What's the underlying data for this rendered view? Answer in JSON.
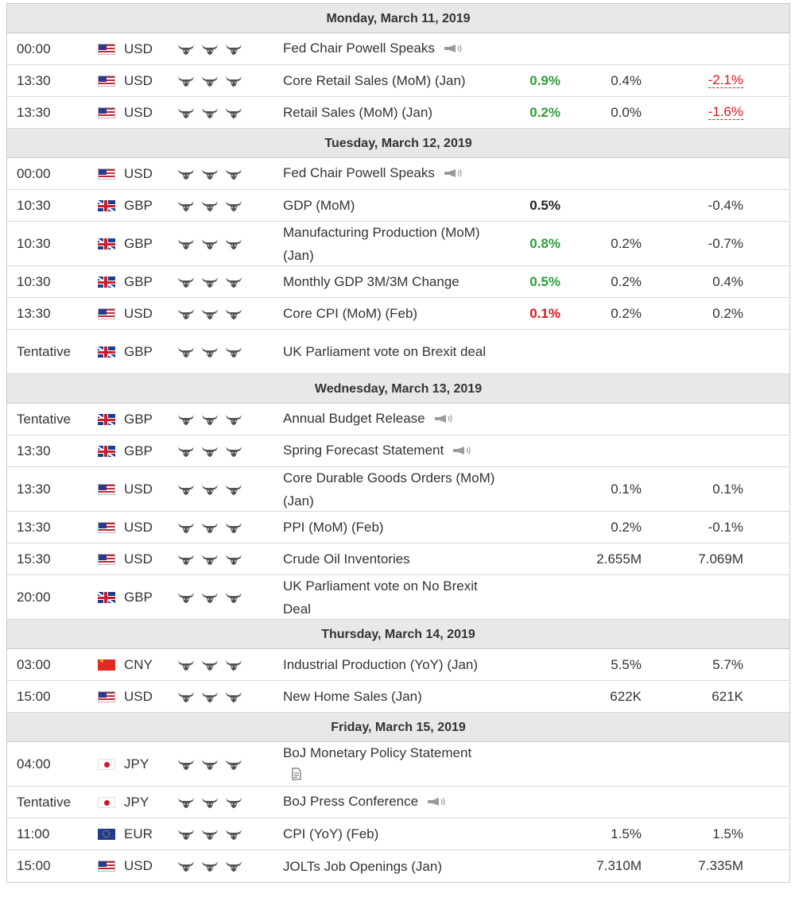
{
  "days": [
    {
      "header": "Monday, March 11, 2019",
      "events": [
        {
          "time": "00:00",
          "flag": "us",
          "currency": "USD",
          "event": "Fed Chair Powell Speaks",
          "icon": "speech-icon",
          "actual": "",
          "actual_tone": "",
          "forecast": "",
          "previous": "",
          "previous_tone": ""
        },
        {
          "time": "13:30",
          "flag": "us",
          "currency": "USD",
          "event": "Core Retail Sales (MoM) (Jan)",
          "icon": "",
          "actual": "0.9%",
          "actual_tone": "pos",
          "forecast": "0.4%",
          "previous": "-2.1%",
          "previous_tone": "revised"
        },
        {
          "time": "13:30",
          "flag": "us",
          "currency": "USD",
          "event": "Retail Sales (MoM) (Jan)",
          "icon": "",
          "actual": "0.2%",
          "actual_tone": "pos",
          "forecast": "0.0%",
          "previous": "-1.6%",
          "previous_tone": "revised"
        }
      ]
    },
    {
      "header": "Tuesday, March 12, 2019",
      "events": [
        {
          "time": "00:00",
          "flag": "us",
          "currency": "USD",
          "event": "Fed Chair Powell Speaks",
          "icon": "speech-icon",
          "actual": "",
          "actual_tone": "",
          "forecast": "",
          "previous": "",
          "previous_tone": ""
        },
        {
          "time": "10:30",
          "flag": "gb",
          "currency": "GBP",
          "event": "GDP (MoM)",
          "icon": "",
          "actual": "0.5%",
          "actual_tone": "neu",
          "forecast": "",
          "previous": "-0.4%",
          "previous_tone": ""
        },
        {
          "time": "10:30",
          "flag": "gb",
          "currency": "GBP",
          "event": "Manufacturing Production (MoM) (Jan)",
          "icon": "",
          "actual": "0.8%",
          "actual_tone": "pos",
          "forecast": "0.2%",
          "previous": "-0.7%",
          "previous_tone": ""
        },
        {
          "time": "10:30",
          "flag": "gb",
          "currency": "GBP",
          "event": "Monthly GDP 3M/3M Change",
          "icon": "",
          "actual": "0.5%",
          "actual_tone": "pos",
          "forecast": "0.2%",
          "previous": "0.4%",
          "previous_tone": ""
        },
        {
          "time": "13:30",
          "flag": "us",
          "currency": "USD",
          "event": "Core CPI (MoM) (Feb)",
          "icon": "",
          "actual": "0.1%",
          "actual_tone": "neg",
          "forecast": "0.2%",
          "previous": "0.2%",
          "previous_tone": ""
        },
        {
          "time": "Tentative",
          "flag": "gb",
          "currency": "GBP",
          "event": "UK Parliament vote on Brexit deal",
          "icon": "",
          "actual": "",
          "actual_tone": "",
          "forecast": "",
          "previous": "",
          "previous_tone": ""
        }
      ]
    },
    {
      "header": "Wednesday, March 13, 2019",
      "events": [
        {
          "time": "Tentative",
          "flag": "gb",
          "currency": "GBP",
          "event": "Annual Budget Release",
          "icon": "speech-icon",
          "actual": "",
          "actual_tone": "",
          "forecast": "",
          "previous": "",
          "previous_tone": ""
        },
        {
          "time": "13:30",
          "flag": "gb",
          "currency": "GBP",
          "event": "Spring Forecast Statement",
          "icon": "speech-icon",
          "actual": "",
          "actual_tone": "",
          "forecast": "",
          "previous": "",
          "previous_tone": ""
        },
        {
          "time": "13:30",
          "flag": "us",
          "currency": "USD",
          "event": "Core Durable Goods Orders (MoM) (Jan)",
          "icon": "",
          "actual": "",
          "actual_tone": "",
          "forecast": "0.1%",
          "previous": "0.1%",
          "previous_tone": ""
        },
        {
          "time": "13:30",
          "flag": "us",
          "currency": "USD",
          "event": "PPI (MoM) (Feb)",
          "icon": "",
          "actual": "",
          "actual_tone": "",
          "forecast": "0.2%",
          "previous": "-0.1%",
          "previous_tone": ""
        },
        {
          "time": "15:30",
          "flag": "us",
          "currency": "USD",
          "event": "Crude Oil Inventories",
          "icon": "",
          "actual": "",
          "actual_tone": "",
          "forecast": "2.655M",
          "previous": "7.069M",
          "previous_tone": ""
        },
        {
          "time": "20:00",
          "flag": "gb",
          "currency": "GBP",
          "event": "UK Parliament vote on No Brexit Deal",
          "icon": "",
          "actual": "",
          "actual_tone": "",
          "forecast": "",
          "previous": "",
          "previous_tone": ""
        }
      ]
    },
    {
      "header": "Thursday, March 14, 2019",
      "events": [
        {
          "time": "03:00",
          "flag": "cn",
          "currency": "CNY",
          "event": "Industrial Production (YoY) (Jan)",
          "icon": "",
          "actual": "",
          "actual_tone": "",
          "forecast": "5.5%",
          "previous": "5.7%",
          "previous_tone": ""
        },
        {
          "time": "15:00",
          "flag": "us",
          "currency": "USD",
          "event": "New Home Sales (Jan)",
          "icon": "",
          "actual": "",
          "actual_tone": "",
          "forecast": "622K",
          "previous": "621K",
          "previous_tone": ""
        }
      ]
    },
    {
      "header": "Friday, March 15, 2019",
      "events": [
        {
          "time": "04:00",
          "flag": "jp",
          "currency": "JPY",
          "event": "BoJ Monetary Policy Statement",
          "icon": "document-icon",
          "actual": "",
          "actual_tone": "",
          "forecast": "",
          "previous": "",
          "previous_tone": ""
        },
        {
          "time": "Tentative",
          "flag": "jp",
          "currency": "JPY",
          "event": "BoJ Press Conference",
          "icon": "speech-icon",
          "actual": "",
          "actual_tone": "",
          "forecast": "",
          "previous": "",
          "previous_tone": ""
        },
        {
          "time": "11:00",
          "flag": "eu",
          "currency": "EUR",
          "event": "CPI (YoY) (Feb)",
          "icon": "",
          "actual": "",
          "actual_tone": "",
          "forecast": "1.5%",
          "previous": "1.5%",
          "previous_tone": ""
        },
        {
          "time": "15:00",
          "flag": "us",
          "currency": "USD",
          "event": "JOLTs Job Openings (Jan)",
          "icon": "",
          "actual": "",
          "actual_tone": "",
          "forecast": "7.310M",
          "previous": "7.335M",
          "previous_tone": ""
        }
      ]
    }
  ],
  "importance_icon": "bull-icon",
  "importance_level": 3,
  "colors": {
    "positive": "#2a9f35",
    "negative": "#e0161a",
    "header_bg": "#e8e8e8"
  }
}
